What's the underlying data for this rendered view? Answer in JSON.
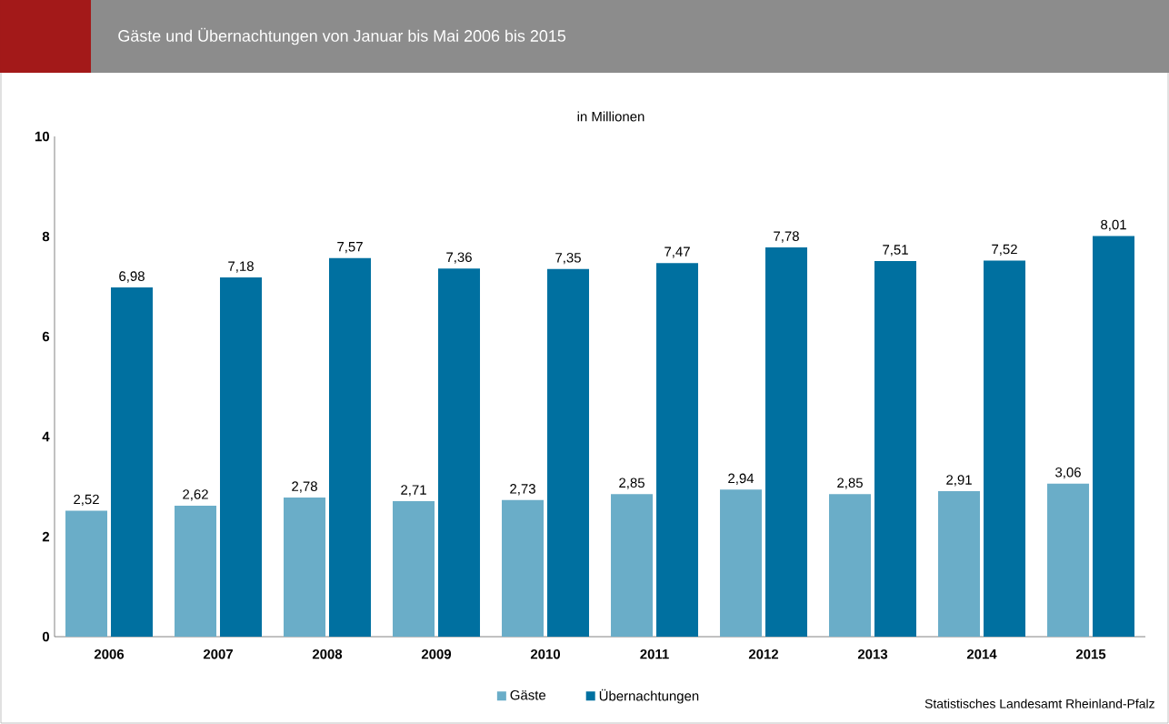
{
  "chart_data": {
    "type": "bar",
    "title": "Gäste und Übernachtungen von Januar bis Mai 2006 bis 2015",
    "subtitle": "in Millionen",
    "categories": [
      "2006",
      "2007",
      "2008",
      "2009",
      "2010",
      "2011",
      "2012",
      "2013",
      "2014",
      "2015"
    ],
    "series": [
      {
        "name": "Gäste",
        "color": "#6aadc8",
        "values": [
          2.52,
          2.62,
          2.78,
          2.71,
          2.73,
          2.85,
          2.94,
          2.85,
          2.91,
          3.06
        ],
        "value_labels": [
          "2,52",
          "2,62",
          "2,78",
          "2,71",
          "2,73",
          "2,85",
          "2,94",
          "2,85",
          "2,91",
          "3,06"
        ]
      },
      {
        "name": "Übernachtungen",
        "color": "#0070a0",
        "values": [
          6.98,
          7.18,
          7.57,
          7.36,
          7.35,
          7.47,
          7.78,
          7.51,
          7.52,
          8.01
        ],
        "value_labels": [
          "6,98",
          "7,18",
          "7,57",
          "7,36",
          "7,35",
          "7,47",
          "7,78",
          "7,51",
          "7,52",
          "8,01"
        ]
      }
    ],
    "ylim": [
      0,
      10
    ],
    "yticks": [
      0,
      2,
      4,
      6,
      8,
      10
    ],
    "grid": false,
    "legend": "bottom",
    "annotations": [
      "Statistisches Landesamt Rheinland-Pfalz"
    ]
  }
}
